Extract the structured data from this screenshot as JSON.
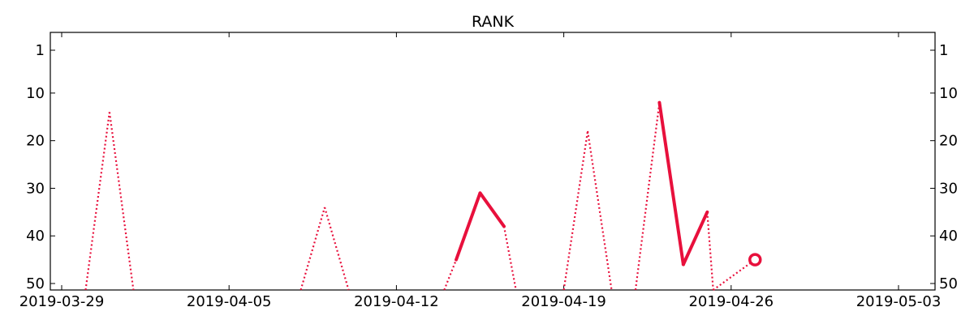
{
  "chart_data": {
    "type": "line",
    "title": "RANK",
    "xlabel": "",
    "ylabel": "",
    "x_axis": {
      "type": "date",
      "range": [
        "2019-03-28",
        "2019-05-03"
      ],
      "ticks": [
        "2019-03-29",
        "2019-04-05",
        "2019-04-12",
        "2019-04-19",
        "2019-04-26",
        "2019-05-03"
      ],
      "tick_labels": [
        "2019-03-29",
        "2019-04-05",
        "2019-04-12",
        "2019-04-19",
        "2019-04-26",
        "2019-05-03"
      ]
    },
    "y_axis": {
      "inverted": true,
      "range": [
        51.5,
        -2.5
      ],
      "ticks": [
        1,
        10,
        20,
        30,
        40,
        50
      ],
      "tick_labels": [
        "1",
        "10",
        "20",
        "30",
        "40",
        "50"
      ],
      "mirrored_right": true
    },
    "grid": false,
    "color": "#e8103c",
    "series": [
      {
        "points": [
          {
            "x": "2019-03-30",
            "y": null
          },
          {
            "x": "2019-03-31",
            "y": 14
          },
          {
            "x": "2019-04-01",
            "y": null
          },
          {
            "x": "2019-04-08",
            "y": null
          },
          {
            "x": "2019-04-09",
            "y": 34
          },
          {
            "x": "2019-04-10",
            "y": null
          },
          {
            "x": "2019-04-14",
            "y": null
          },
          {
            "x": "2019-04-14T12:00",
            "y": 45
          },
          {
            "x": "2019-04-15T12:00",
            "y": 31
          },
          {
            "x": "2019-04-16T12:00",
            "y": 38
          },
          {
            "x": "2019-04-17",
            "y": null
          },
          {
            "x": "2019-04-19",
            "y": null
          },
          {
            "x": "2019-04-20",
            "y": 18
          },
          {
            "x": "2019-04-21",
            "y": null
          },
          {
            "x": "2019-04-22",
            "y": null
          },
          {
            "x": "2019-04-23",
            "y": 12
          },
          {
            "x": "2019-04-24",
            "y": 46
          },
          {
            "x": "2019-04-25",
            "y": 35
          },
          {
            "x": "2019-04-25T06:00",
            "y": null
          },
          {
            "x": "2019-04-27",
            "y": 45
          }
        ],
        "note_style": "solid line joins consecutive ranked days; dotted line drops to the bottom edge for unranked days; isolated ranked day drawn as open circle"
      }
    ]
  }
}
